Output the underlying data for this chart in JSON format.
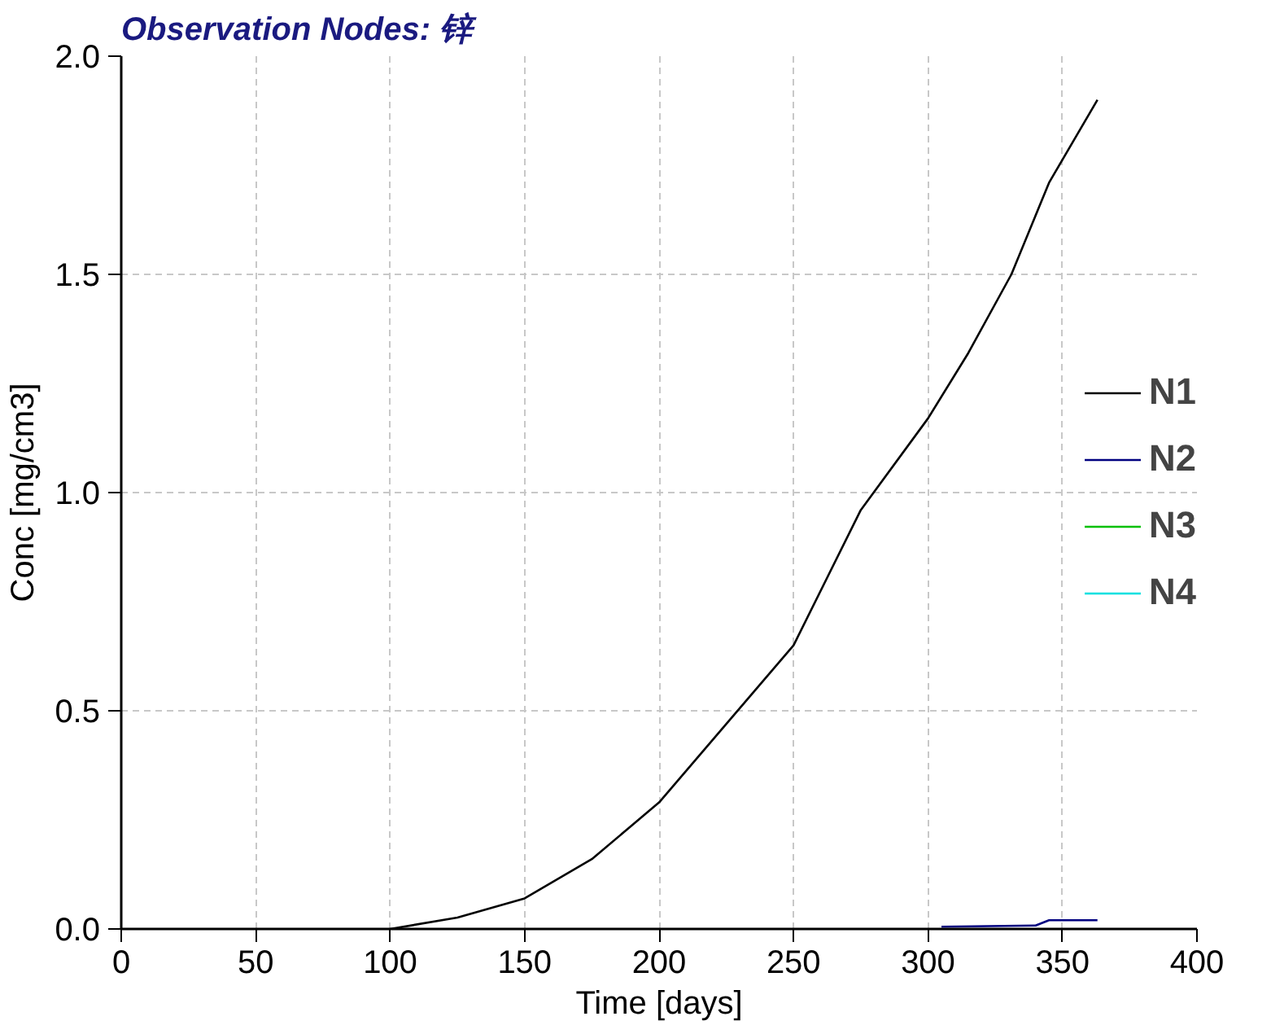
{
  "chart_data": {
    "type": "line",
    "title": "Observation Nodes: 锌",
    "xlabel": "Time [days]",
    "ylabel": "Conc [mg/cm3]",
    "xlim": [
      0,
      400
    ],
    "xticks": [
      0,
      50,
      100,
      150,
      200,
      250,
      300,
      350,
      400
    ],
    "ylim": [
      0,
      2.0
    ],
    "yticks": [
      {
        "value": 0,
        "label": "0.0"
      },
      {
        "value": 0.5,
        "label": "0.5"
      },
      {
        "value": 1.0,
        "label": "1.0"
      },
      {
        "value": 1.5,
        "label": "1.5"
      },
      {
        "value": 2.0,
        "label": "2.0"
      }
    ],
    "grid": true,
    "legend": "right",
    "line_style": "solid",
    "series": [
      {
        "name": "N1",
        "color": "#000000",
        "x": [
          100,
          125,
          150,
          175,
          200,
          225,
          250,
          275,
          300,
          315,
          331,
          345,
          363
        ],
        "values": [
          0,
          0.026,
          0.07,
          0.16,
          0.29,
          0.47,
          0.65,
          0.96,
          1.17,
          1.32,
          1.5,
          1.71,
          1.9
        ]
      },
      {
        "name": "N2",
        "color": "#000080",
        "x": [
          305,
          340,
          345,
          363
        ],
        "values": [
          0.005,
          0.008,
          0.02,
          0.02
        ]
      },
      {
        "name": "N3",
        "color": "#00c000"
      },
      {
        "name": "N4",
        "color": "#00e0e0"
      }
    ]
  }
}
